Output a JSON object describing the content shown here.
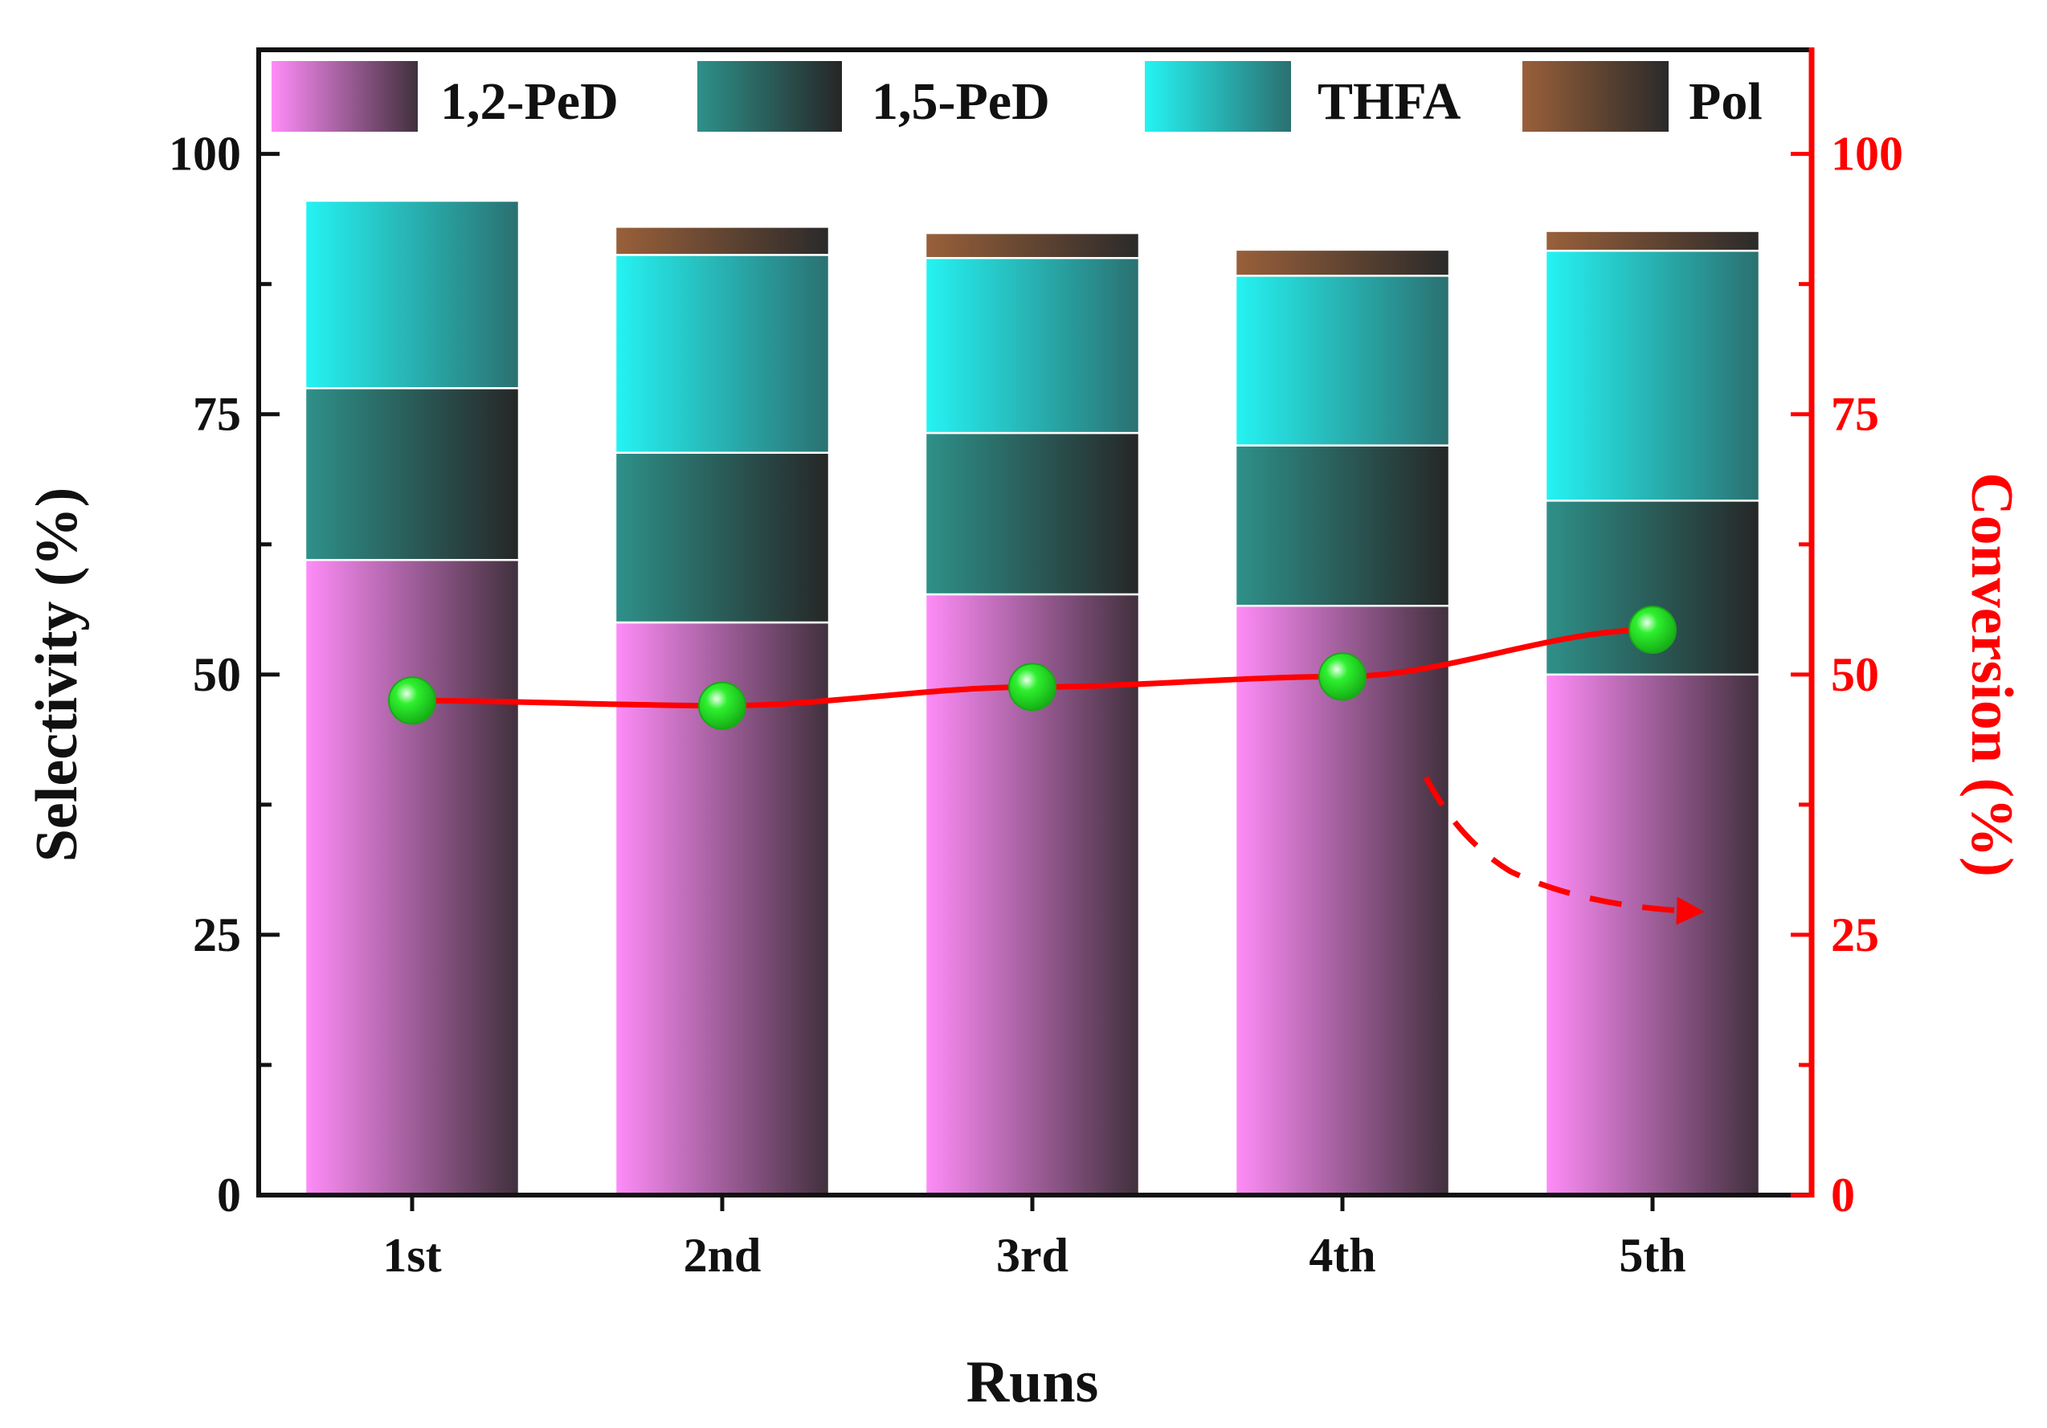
{
  "chart_data": {
    "type": "bar",
    "stacked": true,
    "categories": [
      "1st",
      "2nd",
      "3rd",
      "4th",
      "5th"
    ],
    "series": [
      {
        "name": "1,2-PeD",
        "values": [
          61.0,
          55.0,
          57.7,
          56.6,
          50.0
        ]
      },
      {
        "name": "1,5-PeD",
        "values": [
          16.5,
          16.3,
          15.5,
          15.4,
          16.7
        ]
      },
      {
        "name": "THFA",
        "values": [
          18.0,
          19.0,
          16.8,
          16.3,
          24.0
        ]
      },
      {
        "name": "Pol",
        "values": [
          0.0,
          2.7,
          2.4,
          2.5,
          1.9
        ]
      }
    ],
    "line_series": {
      "name": "Conversion",
      "axis": "right",
      "values": [
        47.5,
        47.0,
        48.8,
        49.8,
        54.3
      ]
    },
    "xlabel": "Runs",
    "ylabel": "Selectivity (%)",
    "y2label": "Conversion (%)",
    "ylim": [
      0,
      110
    ],
    "y2lim": [
      0,
      110
    ],
    "yticks": [
      0,
      25,
      50,
      75,
      100
    ],
    "y2ticks": [
      0,
      25,
      50,
      75,
      100
    ],
    "colors": {
      "1,2-PeD": [
        "#ff8cf8",
        "#40303c"
      ],
      "1,5-PeD": [
        "#2e918a",
        "#262626"
      ],
      "THFA": [
        "#25f3f3",
        "#2b7070"
      ],
      "Pol": [
        "#9a603a",
        "#2a2a2a"
      ],
      "conversion": "#ff0000",
      "marker": "#2ef02e"
    },
    "legend": {
      "position": "top",
      "entries": [
        "1,2-PeD",
        "1,5-PeD",
        "THFA",
        "Pol"
      ]
    },
    "annotations": [
      {
        "type": "dashed-arrow",
        "points_to": "right axis",
        "color": "#ff0000"
      }
    ]
  }
}
